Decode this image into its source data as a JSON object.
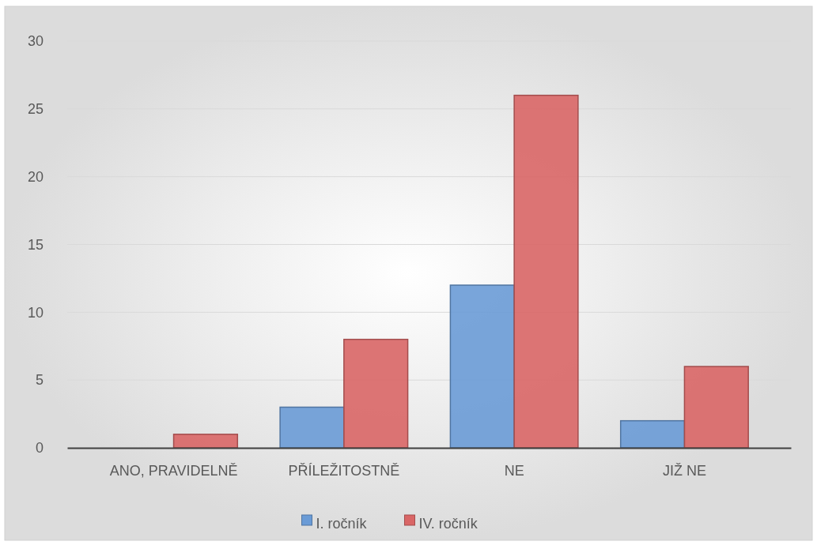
{
  "chart_data": {
    "type": "bar",
    "categories": [
      "ANO, PRAVIDELNĚ",
      "PŘÍLEŽITOSTNĚ",
      "NE",
      "JIŽ NE"
    ],
    "series": [
      {
        "name": "I. ročník",
        "color": "#6a9bd6",
        "values": [
          0,
          3,
          12,
          2
        ]
      },
      {
        "name": "IV. ročník",
        "color": "#d96666",
        "values": [
          1,
          8,
          26,
          6
        ]
      }
    ],
    "ylim": [
      0,
      30
    ],
    "yticks": [
      0,
      5,
      10,
      15,
      20,
      25,
      30
    ],
    "grid": "y",
    "legend": "bottom"
  }
}
